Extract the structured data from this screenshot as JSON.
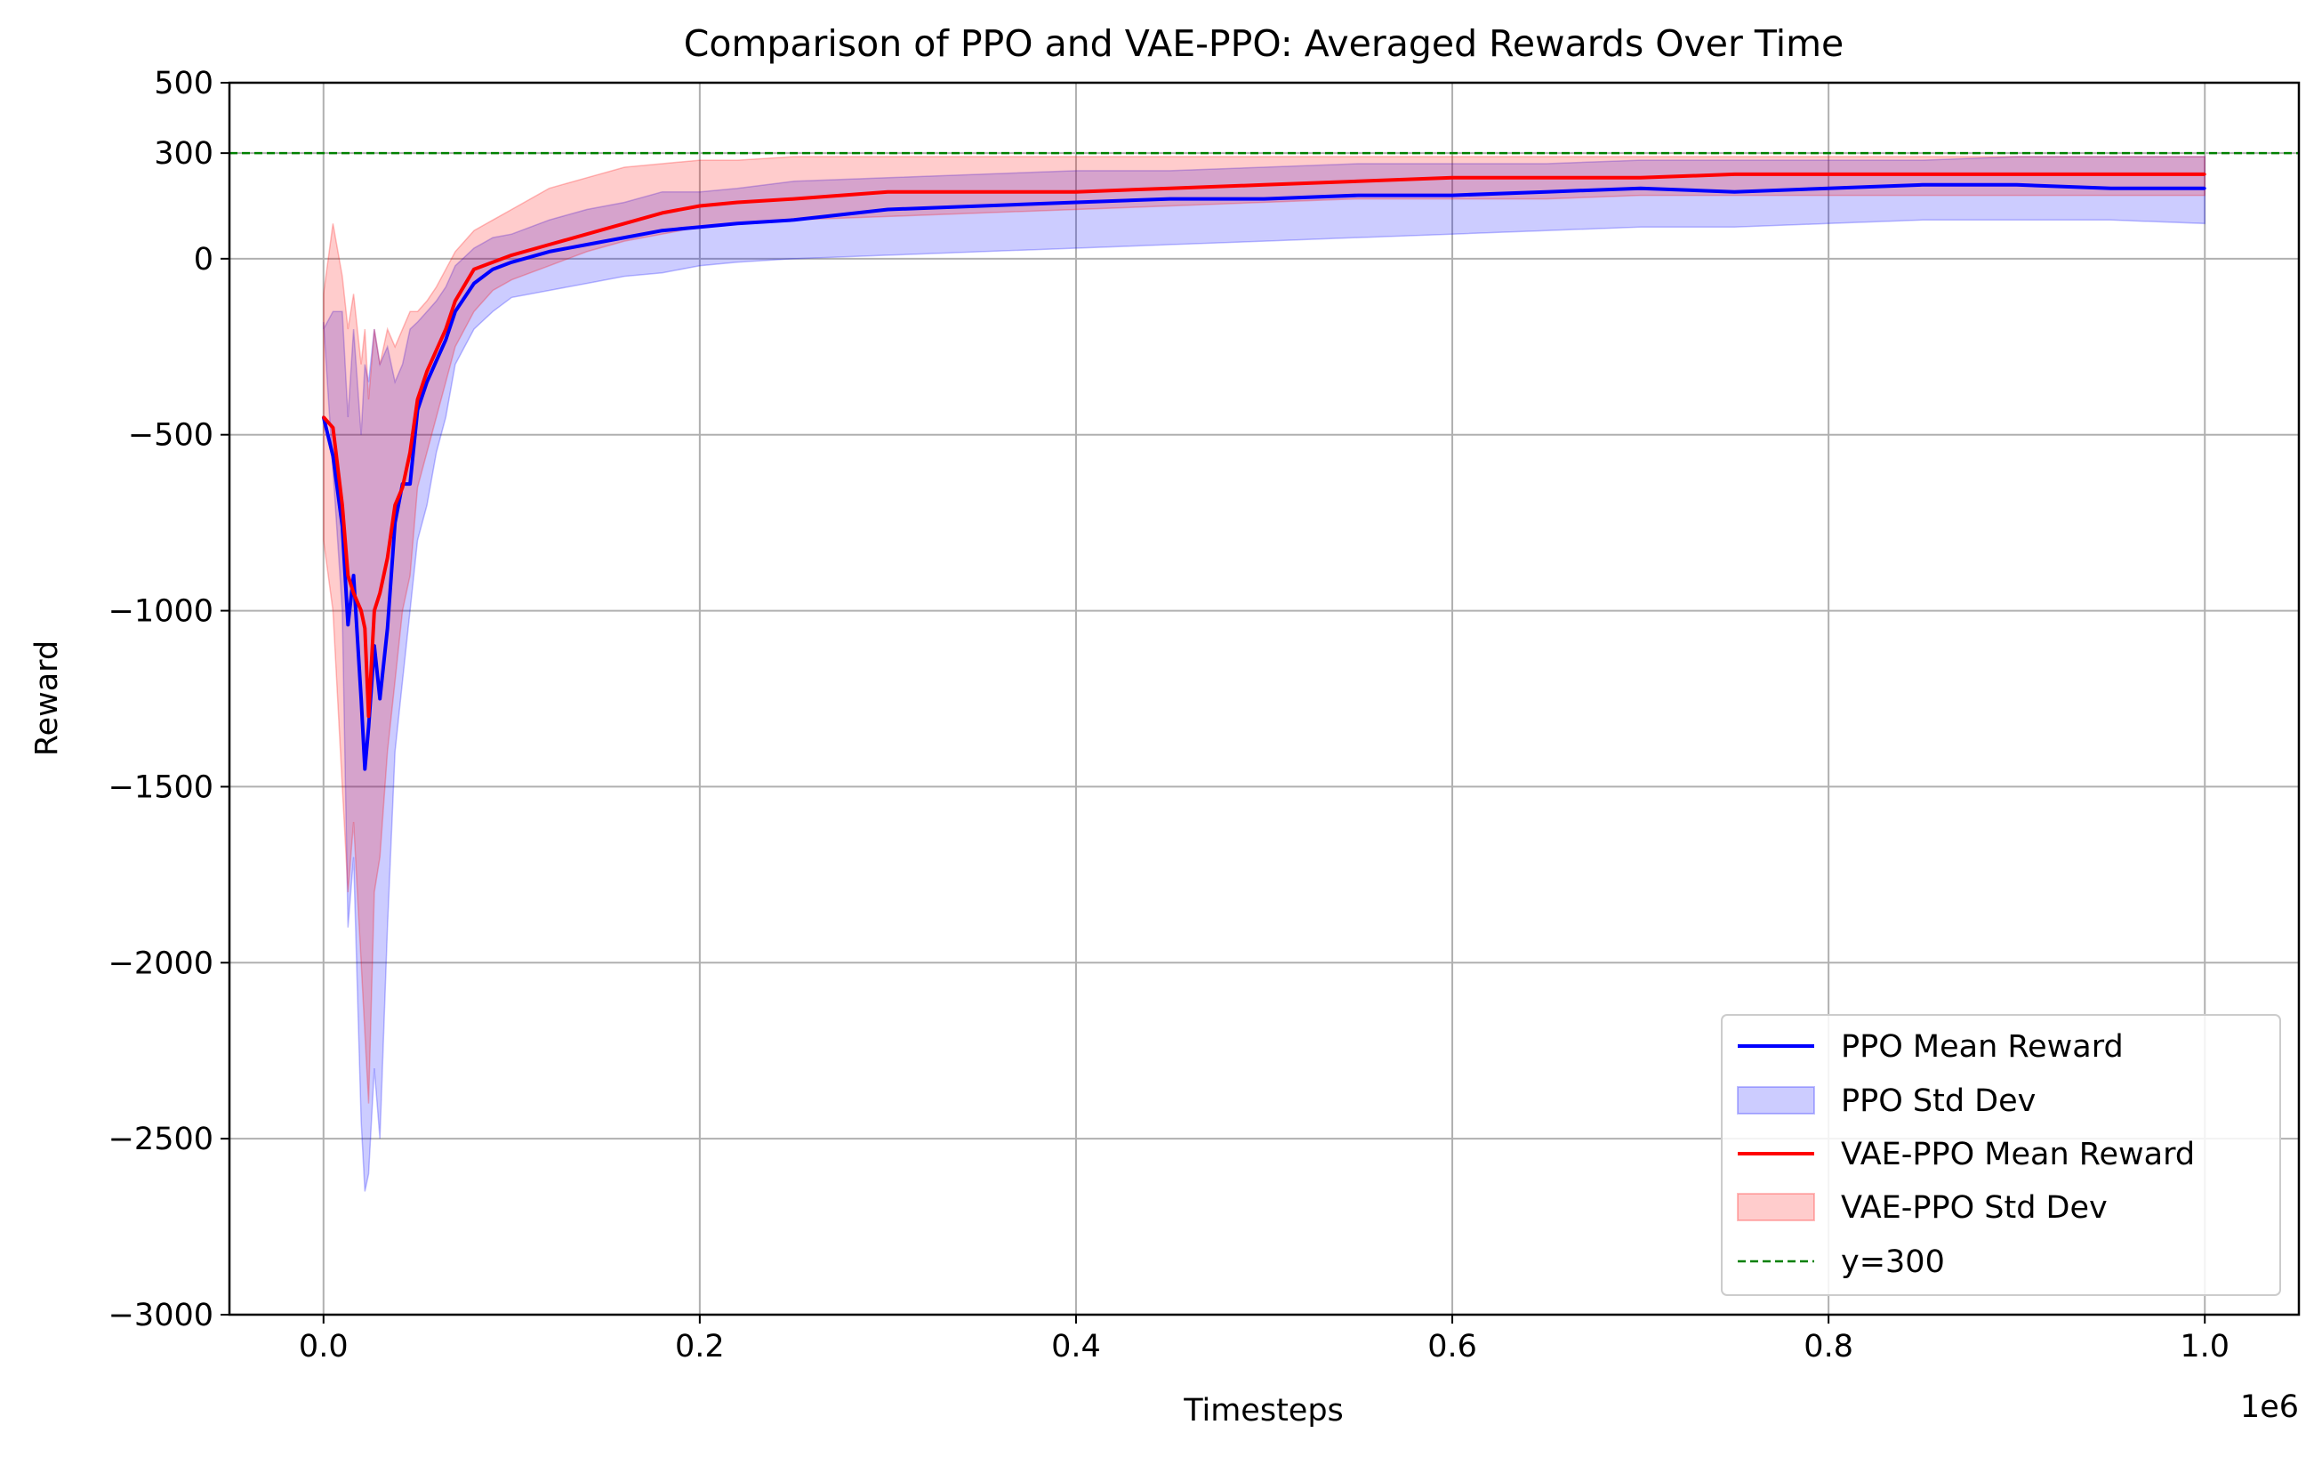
{
  "chart_data": {
    "type": "line",
    "title": "Comparison of PPO and VAE-PPO: Averaged Rewards Over Time",
    "xlabel": "Timesteps",
    "ylabel": "Reward",
    "x_offset_text": "1e6",
    "xlim": [
      -0.05,
      1.05
    ],
    "ylim": [
      -3000,
      500
    ],
    "xticks": [
      {
        "value": 0.0,
        "label": "0.0"
      },
      {
        "value": 0.2,
        "label": "0.2"
      },
      {
        "value": 0.4,
        "label": "0.4"
      },
      {
        "value": 0.6,
        "label": "0.6"
      },
      {
        "value": 0.8,
        "label": "0.8"
      },
      {
        "value": 1.0,
        "label": "1.0"
      }
    ],
    "yticks": [
      {
        "value": 500,
        "label": "500"
      },
      {
        "value": 300,
        "label": "300"
      },
      {
        "value": 0,
        "label": "0"
      },
      {
        "value": -500,
        "label": "−500"
      },
      {
        "value": -1000,
        "label": "−1000"
      },
      {
        "value": -1500,
        "label": "−1500"
      },
      {
        "value": -2000,
        "label": "−2000"
      },
      {
        "value": -2500,
        "label": "−2500"
      },
      {
        "value": -3000,
        "label": "−3000"
      }
    ],
    "grid": true,
    "legend_position": "lower-right",
    "reference_line": {
      "y": 300,
      "name": "y=300",
      "color": "#008000",
      "style": "dashed"
    },
    "series": [
      {
        "name": "PPO Mean Reward",
        "band_name": "PPO Std Dev",
        "color": "#0000ff",
        "band_color": "#0000ff",
        "x": [
          0.0,
          0.005,
          0.01,
          0.013,
          0.016,
          0.02,
          0.022,
          0.024,
          0.027,
          0.03,
          0.034,
          0.038,
          0.042,
          0.046,
          0.05,
          0.055,
          0.06,
          0.065,
          0.07,
          0.08,
          0.09,
          0.1,
          0.12,
          0.14,
          0.16,
          0.18,
          0.2,
          0.22,
          0.25,
          0.3,
          0.35,
          0.4,
          0.45,
          0.5,
          0.55,
          0.6,
          0.65,
          0.7,
          0.75,
          0.8,
          0.85,
          0.9,
          0.95,
          1.0
        ],
        "values": [
          -450,
          -560,
          -760,
          -1040,
          -900,
          -1250,
          -1450,
          -1330,
          -1100,
          -1250,
          -1050,
          -750,
          -640,
          -640,
          -430,
          -350,
          -290,
          -230,
          -150,
          -70,
          -30,
          -10,
          20,
          40,
          60,
          80,
          90,
          100,
          110,
          140,
          150,
          160,
          170,
          170,
          180,
          180,
          190,
          200,
          190,
          200,
          210,
          210,
          200,
          200
        ],
        "std_lower": [
          -180,
          -600,
          -1000,
          -1900,
          -1700,
          -2450,
          -2650,
          -2600,
          -2300,
          -2500,
          -1900,
          -1400,
          -1200,
          -1000,
          -800,
          -700,
          -550,
          -450,
          -300,
          -200,
          -150,
          -110,
          -90,
          -70,
          -50,
          -40,
          -20,
          -10,
          0,
          10,
          20,
          30,
          40,
          50,
          60,
          70,
          80,
          90,
          90,
          100,
          110,
          110,
          110,
          100
        ],
        "std_upper": [
          -200,
          -150,
          -150,
          -450,
          -200,
          -500,
          -300,
          -350,
          -200,
          -300,
          -250,
          -350,
          -300,
          -200,
          -180,
          -150,
          -120,
          -80,
          -20,
          30,
          60,
          70,
          110,
          140,
          160,
          190,
          190,
          200,
          220,
          230,
          240,
          250,
          250,
          260,
          270,
          270,
          270,
          280,
          280,
          280,
          280,
          290,
          290,
          290
        ]
      },
      {
        "name": "VAE-PPO Mean Reward",
        "band_name": "VAE-PPO Std Dev",
        "color": "#ff0000",
        "band_color": "#ff0000",
        "x": [
          0.0,
          0.005,
          0.01,
          0.013,
          0.016,
          0.02,
          0.022,
          0.024,
          0.027,
          0.03,
          0.034,
          0.038,
          0.042,
          0.046,
          0.05,
          0.055,
          0.06,
          0.065,
          0.07,
          0.08,
          0.09,
          0.1,
          0.12,
          0.14,
          0.16,
          0.18,
          0.2,
          0.22,
          0.25,
          0.3,
          0.35,
          0.4,
          0.45,
          0.5,
          0.55,
          0.6,
          0.65,
          0.7,
          0.75,
          0.8,
          0.85,
          0.9,
          0.95,
          1.0
        ],
        "values": [
          -450,
          -480,
          -700,
          -900,
          -950,
          -1000,
          -1050,
          -1300,
          -1000,
          -950,
          -850,
          -700,
          -650,
          -550,
          -400,
          -320,
          -260,
          -200,
          -120,
          -30,
          -10,
          10,
          40,
          70,
          100,
          130,
          150,
          160,
          170,
          190,
          190,
          190,
          200,
          210,
          220,
          230,
          230,
          230,
          240,
          240,
          240,
          240,
          240,
          240
        ],
        "std_lower": [
          -800,
          -1000,
          -1500,
          -1800,
          -1600,
          -2000,
          -2200,
          -2400,
          -1800,
          -1700,
          -1400,
          -1200,
          -1000,
          -900,
          -650,
          -550,
          -450,
          -350,
          -250,
          -150,
          -90,
          -60,
          -20,
          20,
          50,
          70,
          90,
          100,
          110,
          120,
          130,
          140,
          150,
          160,
          170,
          170,
          170,
          180,
          180,
          180,
          180,
          180,
          180,
          180
        ],
        "std_upper": [
          -100,
          100,
          -50,
          -200,
          -100,
          -300,
          -200,
          -400,
          -200,
          -300,
          -200,
          -250,
          -200,
          -150,
          -150,
          -120,
          -80,
          -30,
          20,
          80,
          110,
          140,
          200,
          230,
          260,
          270,
          280,
          280,
          290,
          290,
          290,
          290,
          290,
          290,
          290,
          290,
          290,
          290,
          290,
          290,
          290,
          290,
          290,
          290
        ]
      }
    ]
  }
}
